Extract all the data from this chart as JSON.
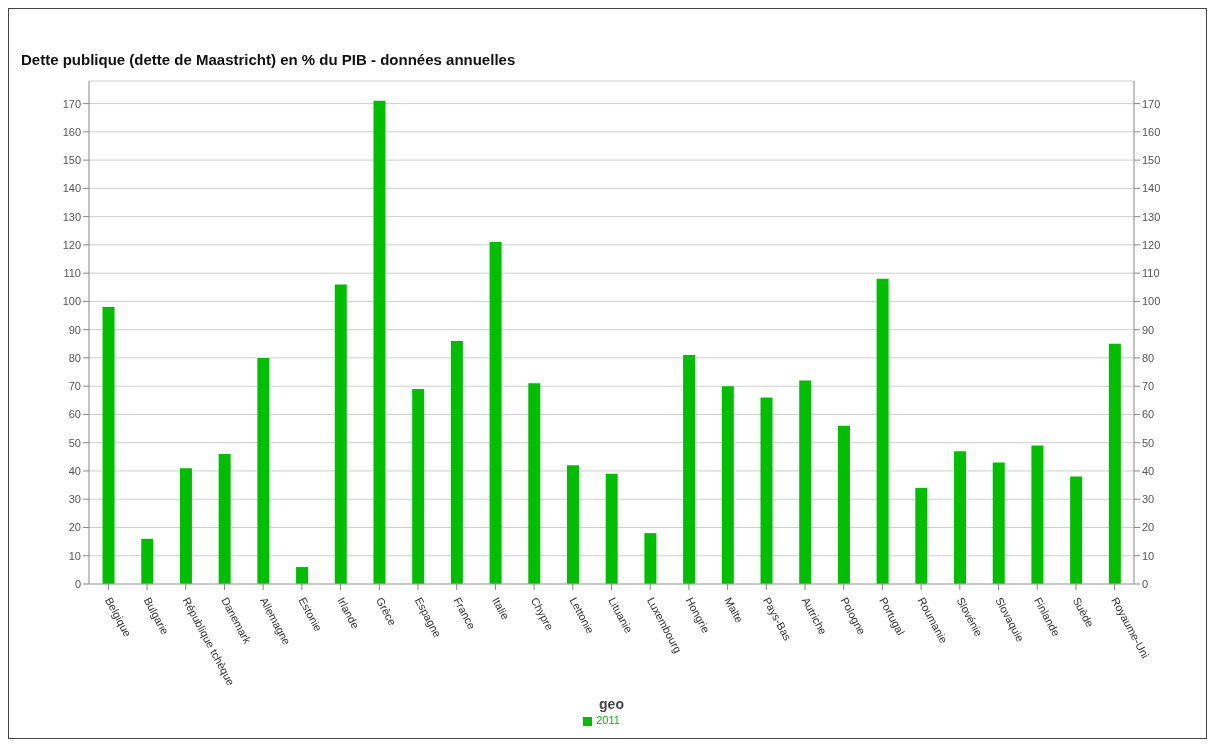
{
  "chart_data": {
    "type": "bar",
    "title": "Dette publique (dette de Maastricht) en % du PIB - données annuelles",
    "xlabel": "geo",
    "categories": [
      "Belgique",
      "Bulgarie",
      "République tchèque",
      "Danemark",
      "Allemagne",
      "Estonie",
      "Irlande",
      "Grèce",
      "Espagne",
      "France",
      "Italie",
      "Chypre",
      "Lettonie",
      "Lituanie",
      "Luxembourg",
      "Hongrie",
      "Malte",
      "Pays-Bas",
      "Autriche",
      "Pologne",
      "Portugal",
      "Roumanie",
      "Slovénie",
      "Slovaquie",
      "Finlande",
      "Suède",
      "Royaume-Uni"
    ],
    "series": [
      {
        "name": "2011",
        "color": "#00bf00",
        "values": [
          98,
          16,
          41,
          46,
          80,
          6,
          106,
          171,
          69,
          86,
          121,
          71,
          42,
          39,
          18,
          81,
          70,
          66,
          72,
          56,
          108,
          34,
          47,
          43,
          49,
          38,
          85
        ]
      }
    ],
    "ylim": [
      0,
      178
    ],
    "yticks": [
      0,
      10,
      20,
      30,
      40,
      50,
      60,
      70,
      80,
      90,
      100,
      110,
      120,
      130,
      140,
      150,
      160,
      170
    ],
    "y2lim": [
      0,
      178
    ],
    "y2ticks": [
      0,
      10,
      20,
      30,
      40,
      50,
      60,
      70,
      80,
      90,
      100,
      110,
      120,
      130,
      140,
      150,
      160,
      170
    ],
    "grid": "y",
    "legend": "bottom"
  }
}
